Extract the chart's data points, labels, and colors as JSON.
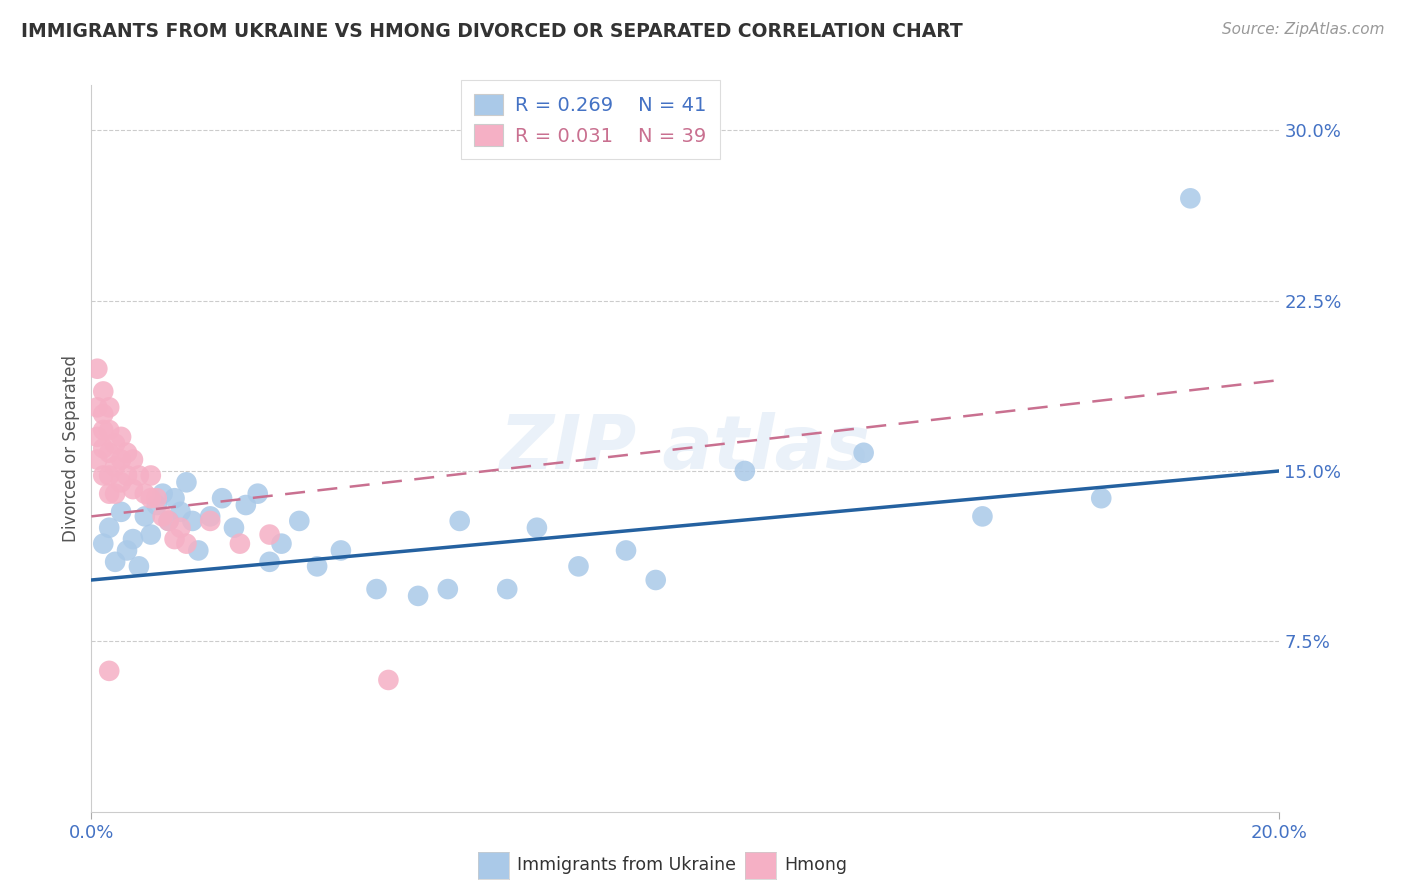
{
  "title": "IMMIGRANTS FROM UKRAINE VS HMONG DIVORCED OR SEPARATED CORRELATION CHART",
  "source": "Source: ZipAtlas.com",
  "ylabel": "Divorced or Separated",
  "legend_ukraine": "Immigrants from Ukraine",
  "legend_hmong": "Hmong",
  "R_ukraine": "R = 0.269",
  "N_ukraine": "N = 41",
  "R_hmong": "R = 0.031",
  "N_hmong": "N = 39",
  "xlim": [
    0.0,
    0.2
  ],
  "ylim": [
    0.0,
    0.32
  ],
  "yticks": [
    0.075,
    0.15,
    0.225,
    0.3
  ],
  "ytick_labels": [
    "7.5%",
    "15.0%",
    "22.5%",
    "30.0%"
  ],
  "xticks": [
    0.0,
    0.2
  ],
  "xtick_labels": [
    "0.0%",
    "20.0%"
  ],
  "ukraine_color": "#aac9e8",
  "ukraine_line_color": "#2461a0",
  "hmong_color": "#f5b0c5",
  "hmong_line_color": "#c97090",
  "background_color": "#ffffff",
  "ukraine_x": [
    0.002,
    0.003,
    0.004,
    0.005,
    0.006,
    0.007,
    0.008,
    0.009,
    0.01,
    0.011,
    0.012,
    0.013,
    0.014,
    0.015,
    0.016,
    0.017,
    0.018,
    0.02,
    0.022,
    0.024,
    0.026,
    0.028,
    0.03,
    0.032,
    0.035,
    0.038,
    0.042,
    0.048,
    0.055,
    0.062,
    0.07,
    0.082,
    0.095,
    0.11,
    0.13,
    0.15,
    0.17,
    0.06,
    0.075,
    0.09,
    0.185
  ],
  "ukraine_y": [
    0.118,
    0.125,
    0.11,
    0.132,
    0.115,
    0.12,
    0.108,
    0.13,
    0.122,
    0.135,
    0.14,
    0.128,
    0.138,
    0.132,
    0.145,
    0.128,
    0.115,
    0.13,
    0.138,
    0.125,
    0.135,
    0.14,
    0.11,
    0.118,
    0.128,
    0.108,
    0.115,
    0.098,
    0.095,
    0.128,
    0.098,
    0.108,
    0.102,
    0.15,
    0.158,
    0.13,
    0.138,
    0.098,
    0.125,
    0.115,
    0.27
  ],
  "hmong_x": [
    0.001,
    0.001,
    0.001,
    0.001,
    0.002,
    0.002,
    0.002,
    0.002,
    0.002,
    0.003,
    0.003,
    0.003,
    0.003,
    0.003,
    0.004,
    0.004,
    0.004,
    0.005,
    0.005,
    0.005,
    0.006,
    0.006,
    0.007,
    0.007,
    0.008,
    0.009,
    0.01,
    0.01,
    0.011,
    0.012,
    0.013,
    0.014,
    0.015,
    0.016,
    0.02,
    0.025,
    0.03,
    0.003,
    0.05
  ],
  "hmong_y": [
    0.195,
    0.178,
    0.165,
    0.155,
    0.185,
    0.175,
    0.168,
    0.16,
    0.148,
    0.178,
    0.168,
    0.158,
    0.148,
    0.14,
    0.162,
    0.152,
    0.14,
    0.165,
    0.155,
    0.145,
    0.158,
    0.148,
    0.155,
    0.142,
    0.148,
    0.14,
    0.148,
    0.138,
    0.138,
    0.13,
    0.128,
    0.12,
    0.125,
    0.118,
    0.128,
    0.118,
    0.122,
    0.062,
    0.058
  ]
}
